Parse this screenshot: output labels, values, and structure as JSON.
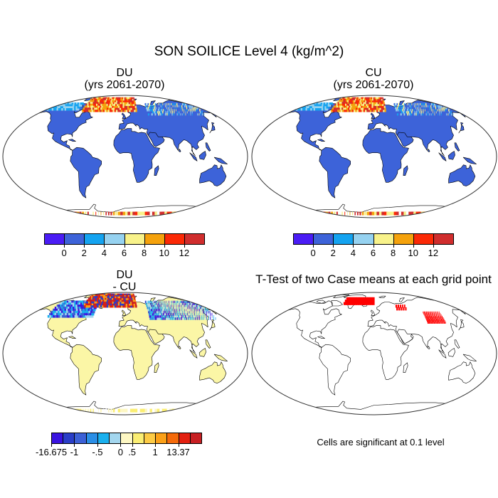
{
  "figure": {
    "title": "SON SOILICE Level 4 (kg/m^2)"
  },
  "panels": {
    "du": {
      "title_line1": "DU",
      "title_line2": "(yrs 2061-2070)"
    },
    "cu": {
      "title_line1": "CU",
      "title_line2": "(yrs 2061-2070)"
    },
    "diff": {
      "title_line1": "DU",
      "title_line2": "- CU"
    },
    "ttest": {
      "title": "T-Test of two Case means at each grid point",
      "note": "Cells are significant at 0.1 level"
    }
  },
  "colorbars": {
    "absolute": {
      "colors": [
        "#4a1cf5",
        "#3d63d9",
        "#14a3f0",
        "#96d2f0",
        "#f8f28a",
        "#f5a20c",
        "#fb2906",
        "#d02d2d"
      ],
      "labels": [
        "0",
        "2",
        "4",
        "6",
        "8",
        "10",
        "12"
      ]
    },
    "difference": {
      "colors": [
        "#3a14e0",
        "#2a3ec8",
        "#3c60d6",
        "#2a8ee6",
        "#1ab0ee",
        "#a3d6ee",
        "#fdf7c3",
        "#fbee73",
        "#fdcb45",
        "#fba018",
        "#f56a0a",
        "#e32010",
        "#c71f22"
      ],
      "labels": [
        "-16.675",
        "-1",
        "-.5",
        "0",
        ".5",
        "1",
        "13.37"
      ]
    }
  },
  "map_colors": {
    "land_base_absolute": "#3d63d9",
    "land_base_difference": "#fbf6a6",
    "significant": "#ff0000",
    "outline": "#000000"
  }
}
